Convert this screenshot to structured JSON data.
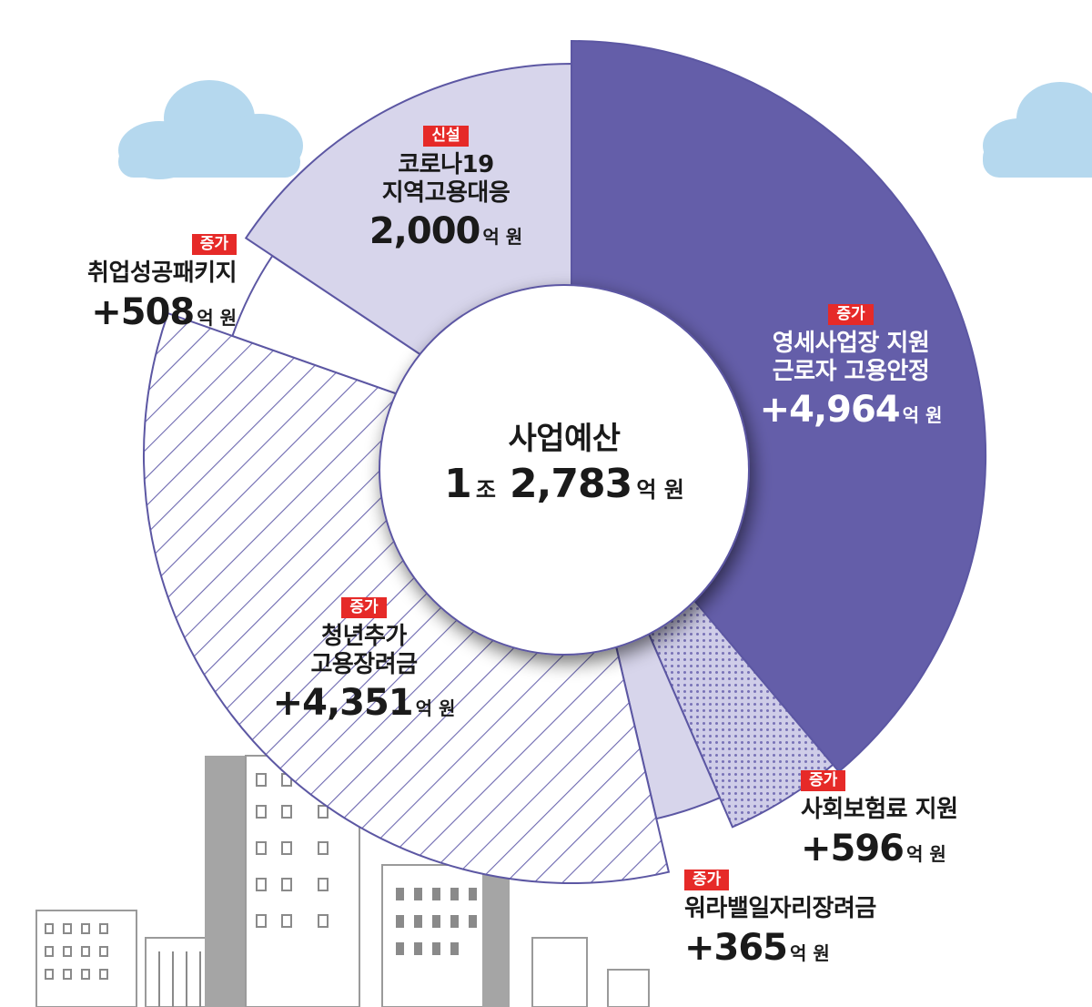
{
  "center": {
    "title": "사업예산",
    "value_num": "1",
    "value_unit1": "조",
    "value_num2": "2,783",
    "value_unit2": "억 원"
  },
  "colors": {
    "main_slice": "#645ea9",
    "light_slice": "#d7d5eb",
    "outline": "#5c57a3",
    "badge": "#e62a28",
    "cloud": "#b5d8ee",
    "building": "#a3a3a3"
  },
  "chart_data": {
    "type": "pie",
    "title": "사업예산 1조 2,783억 원",
    "unit": "억 원",
    "slices": [
      {
        "key": "s1",
        "badge": "증가",
        "name_lines": [
          "영세사업장 지원",
          "근로자 고용안정"
        ],
        "value": 4964,
        "display": "+4,964",
        "fill": "solid-dark"
      },
      {
        "key": "s2",
        "badge": "증가",
        "name_lines": [
          "사회보험료 지원"
        ],
        "value": 596,
        "display": "+596",
        "fill": "dots"
      },
      {
        "key": "s3",
        "badge": "증가",
        "name_lines": [
          "워라밸일자리장려금"
        ],
        "value": 365,
        "display": "+365",
        "fill": "solid-light"
      },
      {
        "key": "s4",
        "badge": "증가",
        "name_lines": [
          "청년추가",
          "고용장려금"
        ],
        "value": 4351,
        "display": "+4,351",
        "fill": "hatch"
      },
      {
        "key": "s5",
        "badge": "증가",
        "name_lines": [
          "취업성공패키지"
        ],
        "value": 508,
        "display": "+508",
        "fill": "white"
      },
      {
        "key": "s6",
        "badge": "신설",
        "name_lines": [
          "코로나19",
          "지역고용대응"
        ],
        "value": 2000,
        "display": "2,000",
        "fill": "solid-light"
      }
    ]
  }
}
